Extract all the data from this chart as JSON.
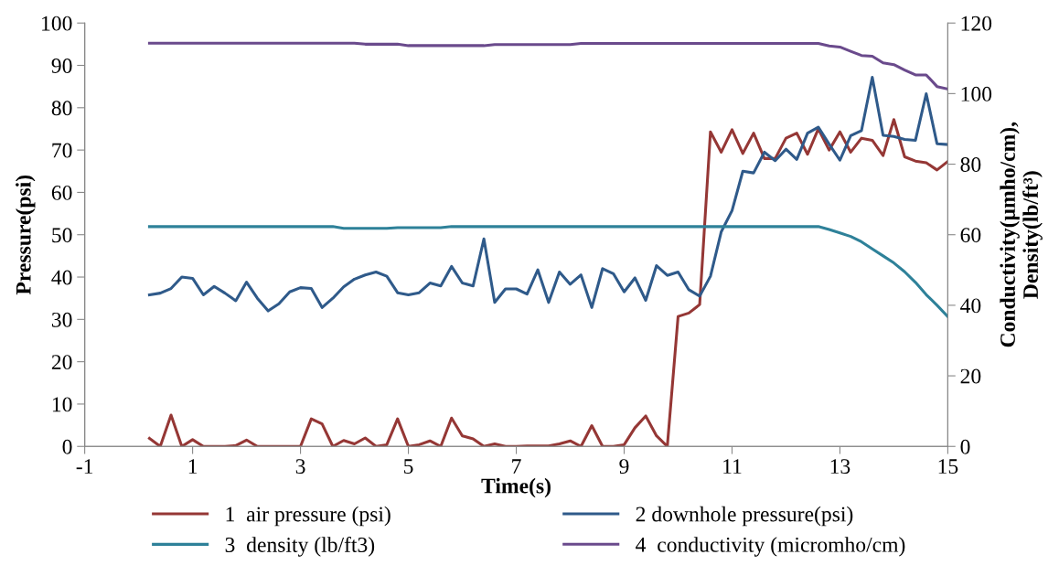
{
  "chart_data": {
    "type": "line",
    "xlabel": "Time(s)",
    "ylabel": "Pressure(psi)",
    "y2label": "Conductivity(μmho/cm),\nDensity(lb/ft³)",
    "x": [
      0.2,
      0.4,
      0.6,
      0.8,
      1.0,
      1.2,
      1.4,
      1.6,
      1.8,
      2.0,
      2.2,
      2.4,
      2.6,
      2.8,
      3.0,
      3.2,
      3.4,
      3.6,
      3.8,
      4.0,
      4.2,
      4.4,
      4.6,
      4.8,
      5.0,
      5.2,
      5.4,
      5.6,
      5.8,
      6.0,
      6.2,
      6.4,
      6.6,
      6.8,
      7.0,
      7.2,
      7.4,
      7.6,
      7.8,
      8.0,
      8.2,
      8.4,
      8.6,
      8.8,
      9.0,
      9.2,
      9.4,
      9.6,
      9.8,
      10.0,
      10.2,
      10.4,
      10.6,
      10.8,
      11.0,
      11.2,
      11.4,
      11.6,
      11.8,
      12.0,
      12.2,
      12.4,
      12.6,
      12.8,
      13.0,
      13.2,
      13.4,
      13.6,
      13.8,
      14.0,
      14.2,
      14.4,
      14.6,
      14.8,
      15.0
    ],
    "series": [
      {
        "name": "1  air pressure (psi)",
        "color": "#953735",
        "values": [
          1.9,
          0,
          7.4,
          0,
          1.6,
          0,
          0,
          0,
          0.2,
          1.5,
          0,
          0,
          0,
          0,
          0,
          6.5,
          5.3,
          0,
          1.4,
          0.6,
          2,
          0,
          0.4,
          6.5,
          0,
          0.4,
          1.3,
          0,
          6.7,
          2.5,
          1.8,
          0,
          0.6,
          0,
          0,
          0.1,
          0.1,
          0.1,
          0.6,
          1.3,
          0,
          4.9,
          0,
          0,
          0.4,
          4.4,
          7.2,
          2.5,
          0,
          30.7,
          31.5,
          33.5,
          74.3,
          69.5,
          74.8,
          69.2,
          74,
          68,
          68,
          72.8,
          74,
          69,
          75,
          70,
          74.3,
          69.5,
          72.8,
          72.3,
          68.7,
          77.2,
          68.4,
          67.4,
          67,
          65.3,
          67.3
        ]
      },
      {
        "name": "2 downhole pressure(psi)",
        "color": "#2f5a8a",
        "values": [
          35.8,
          36.2,
          37.3,
          40,
          39.7,
          35.8,
          37.8,
          36.2,
          34.4,
          38.8,
          35,
          32,
          33.7,
          36.5,
          37.5,
          37.3,
          32.8,
          35,
          37.7,
          39.5,
          40.5,
          41.2,
          40.2,
          36.3,
          35.8,
          36.3,
          38.6,
          37.9,
          42.5,
          38.6,
          37.9,
          49,
          34,
          37.2,
          37.2,
          36,
          41.7,
          34,
          41.2,
          38.3,
          40.5,
          32.8,
          42,
          40.8,
          36.5,
          39.8,
          34.5,
          42.7,
          40.4,
          41.2,
          37,
          35.5,
          40.2,
          50.7,
          55.7,
          65,
          64.6,
          69.5,
          67.5,
          70.2,
          67.8,
          74,
          75.4,
          71.4,
          67.6,
          73.4,
          74.6,
          87.2,
          73.5,
          73.2,
          72.5,
          72.3,
          83.3,
          71.5,
          71.3
        ]
      },
      {
        "name": "3  density (lb/ft3)",
        "color": "#2e8199",
        "axis": "y2",
        "values": [
          62.3,
          62.3,
          62.3,
          62.3,
          62.3,
          62.3,
          62.3,
          62.3,
          62.3,
          62.3,
          62.3,
          62.3,
          62.3,
          62.3,
          62.3,
          62.3,
          62.3,
          62.3,
          61.8,
          61.8,
          61.8,
          61.8,
          61.8,
          62.0,
          62.0,
          62.0,
          62.0,
          62.0,
          62.3,
          62.3,
          62.3,
          62.3,
          62.3,
          62.3,
          62.3,
          62.3,
          62.3,
          62.3,
          62.3,
          62.3,
          62.3,
          62.3,
          62.3,
          62.3,
          62.3,
          62.3,
          62.3,
          62.3,
          62.3,
          62.3,
          62.3,
          62.3,
          62.3,
          62.3,
          62.3,
          62.3,
          62.3,
          62.3,
          62.3,
          62.3,
          62.3,
          62.3,
          62.3,
          61.5,
          60.5,
          59.5,
          58,
          56,
          54,
          52,
          49.5,
          46.5,
          43,
          40,
          36.8
        ]
      },
      {
        "name": "4  conductivity (micromho/cm)",
        "color": "#6a4a8c",
        "axis": "y2",
        "values": [
          114.3,
          114.3,
          114.3,
          114.3,
          114.3,
          114.3,
          114.3,
          114.3,
          114.3,
          114.3,
          114.3,
          114.3,
          114.3,
          114.3,
          114.3,
          114.3,
          114.3,
          114.3,
          114.3,
          114.3,
          114.0,
          114.0,
          114.0,
          114.0,
          113.6,
          113.6,
          113.6,
          113.6,
          113.6,
          113.6,
          113.6,
          113.6,
          113.9,
          113.9,
          113.9,
          113.9,
          113.9,
          113.9,
          113.9,
          113.9,
          114.2,
          114.2,
          114.2,
          114.2,
          114.2,
          114.2,
          114.2,
          114.2,
          114.2,
          114.2,
          114.2,
          114.2,
          114.2,
          114.2,
          114.2,
          114.2,
          114.2,
          114.2,
          114.2,
          114.2,
          114.2,
          114.2,
          114.2,
          113.5,
          113.2,
          112,
          110.8,
          110.6,
          108.7,
          108.2,
          106.7,
          105.3,
          105.3,
          102,
          101.3
        ]
      }
    ],
    "xlim": [
      -1,
      15
    ],
    "xticks": [
      -1,
      1,
      3,
      5,
      7,
      9,
      11,
      13,
      15
    ],
    "ylim": [
      0,
      100
    ],
    "yticks": [
      0,
      10,
      20,
      30,
      40,
      50,
      60,
      70,
      80,
      90,
      100
    ],
    "y2lim": [
      0,
      120
    ],
    "y2ticks": [
      0,
      20,
      40,
      60,
      80,
      100,
      120
    ],
    "grid": false,
    "legend": "bottom",
    "marker": "none",
    "line_style": "solid"
  }
}
